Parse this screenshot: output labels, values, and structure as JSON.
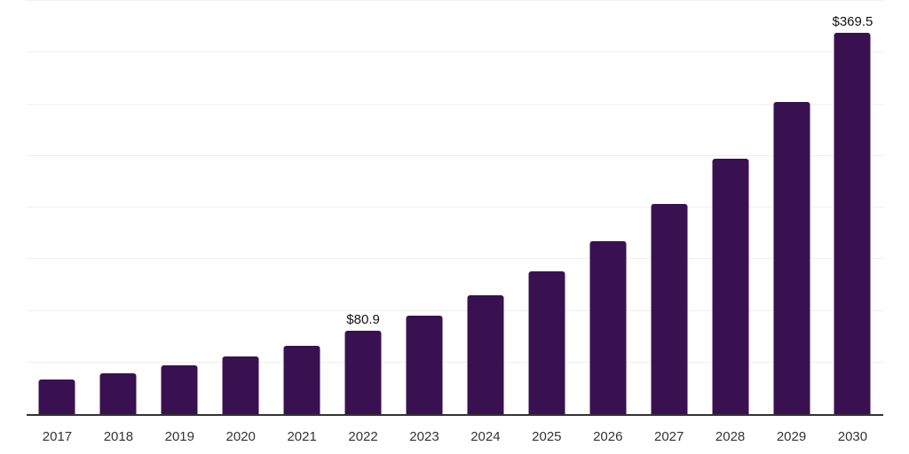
{
  "chart_data": {
    "type": "bar",
    "title": "",
    "xlabel": "",
    "ylabel": "",
    "categories": [
      "2017",
      "2018",
      "2019",
      "2020",
      "2021",
      "2022",
      "2023",
      "2024",
      "2025",
      "2026",
      "2027",
      "2028",
      "2029",
      "2030"
    ],
    "values": [
      33.1,
      39.6,
      47.0,
      56.2,
      66.5,
      80.9,
      95.5,
      115.0,
      138.5,
      167.5,
      203.5,
      247.5,
      302.0,
      369.5
    ],
    "value_labels": [
      "",
      "",
      "",
      "",
      "",
      "$80.9",
      "",
      "",
      "",
      "",
      "",
      "",
      "",
      "$369.5"
    ],
    "ylim": [
      0,
      400
    ],
    "gridline_step": 50,
    "grid": true,
    "legend": false,
    "y_tick_labels_visible": false,
    "colors": {
      "bar": "#391150",
      "axis": "#333333",
      "gridline": "#efefef",
      "x_label": "#333333",
      "value_label": "#111111",
      "background": "#ffffff"
    }
  }
}
